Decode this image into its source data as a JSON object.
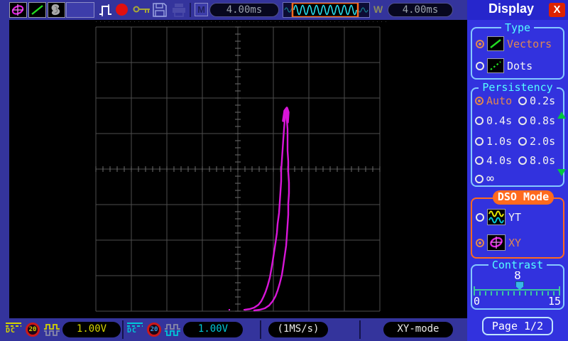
{
  "toolbar": {
    "main_timebase_label": "M",
    "main_timebase": "4.00ms",
    "window_timebase_label": "W",
    "window_timebase": "4.00ms"
  },
  "sidebar": {
    "title": "Display",
    "close_label": "X",
    "type_section": {
      "title": "Type",
      "options": [
        "Vectors",
        "Dots"
      ],
      "selected": "Vectors"
    },
    "persistency_section": {
      "title": "Persistency",
      "options": [
        "Auto",
        "0.2s",
        "0.4s",
        "0.8s",
        "1.0s",
        "2.0s",
        "4.0s",
        "8.0s",
        "∞"
      ],
      "selected": "Auto"
    },
    "dso_section": {
      "title": "DSO Mode",
      "options": [
        "YT",
        "XY"
      ],
      "selected": "XY"
    },
    "contrast_section": {
      "title": "Contrast",
      "value": "8",
      "min": "0",
      "max": "15"
    },
    "page_button": "Page 1/2"
  },
  "bottom_bar": {
    "ch1": {
      "coupling": "DC",
      "bandwidth": "20",
      "scale": "1.00V"
    },
    "ch2": {
      "coupling": "DC",
      "bandwidth": "20",
      "scale": "1.00V"
    },
    "sample_rate": "(1MS/s)",
    "mode": "XY-mode"
  },
  "colors": {
    "trace": "#d816d8",
    "ch1": "#d4d400",
    "ch2": "#00c8d8",
    "accent_orange": "#ff6a1e",
    "title_cyan": "#55ffff",
    "grid": "#4e4e4e"
  },
  "trace": {
    "color": "#d816d8",
    "width": 2.4,
    "curves": [
      [
        [
          332,
          408
        ],
        [
          339,
          407
        ],
        [
          345,
          405
        ],
        [
          351,
          401
        ],
        [
          355,
          396
        ],
        [
          358,
          390
        ],
        [
          361,
          383
        ],
        [
          364,
          374
        ],
        [
          367,
          363
        ],
        [
          369,
          352
        ],
        [
          371,
          340
        ],
        [
          373,
          327
        ],
        [
          375,
          314
        ],
        [
          377,
          300
        ],
        [
          378,
          287
        ],
        [
          380,
          272
        ],
        [
          381,
          257
        ],
        [
          382,
          242
        ],
        [
          383,
          227
        ],
        [
          383,
          212
        ],
        [
          384,
          198
        ],
        [
          385,
          183
        ],
        [
          386,
          168
        ],
        [
          387,
          154
        ],
        [
          388,
          142
        ],
        [
          390,
          131
        ],
        [
          392,
          126
        ]
      ],
      [
        [
          345,
          409
        ],
        [
          353,
          408
        ],
        [
          360,
          406
        ],
        [
          366,
          402
        ],
        [
          371,
          396
        ],
        [
          375,
          389
        ],
        [
          378,
          381
        ],
        [
          381,
          371
        ],
        [
          384,
          359
        ],
        [
          386,
          346
        ],
        [
          388,
          332
        ],
        [
          390,
          318
        ],
        [
          391,
          304
        ],
        [
          392,
          289
        ],
        [
          393,
          274
        ],
        [
          393,
          259
        ],
        [
          394,
          244
        ],
        [
          394,
          229
        ],
        [
          393,
          214
        ],
        [
          393,
          199
        ],
        [
          392,
          184
        ],
        [
          392,
          169
        ],
        [
          392,
          154
        ],
        [
          391,
          141
        ],
        [
          391,
          130
        ]
      ]
    ],
    "cap": [
      [
        386,
        142
      ],
      [
        388,
        128
      ],
      [
        391,
        124
      ],
      [
        393,
        130
      ],
      [
        392,
        144
      ]
    ],
    "dots": [
      [
        309,
        407
      ],
      [
        330,
        407
      ]
    ]
  }
}
